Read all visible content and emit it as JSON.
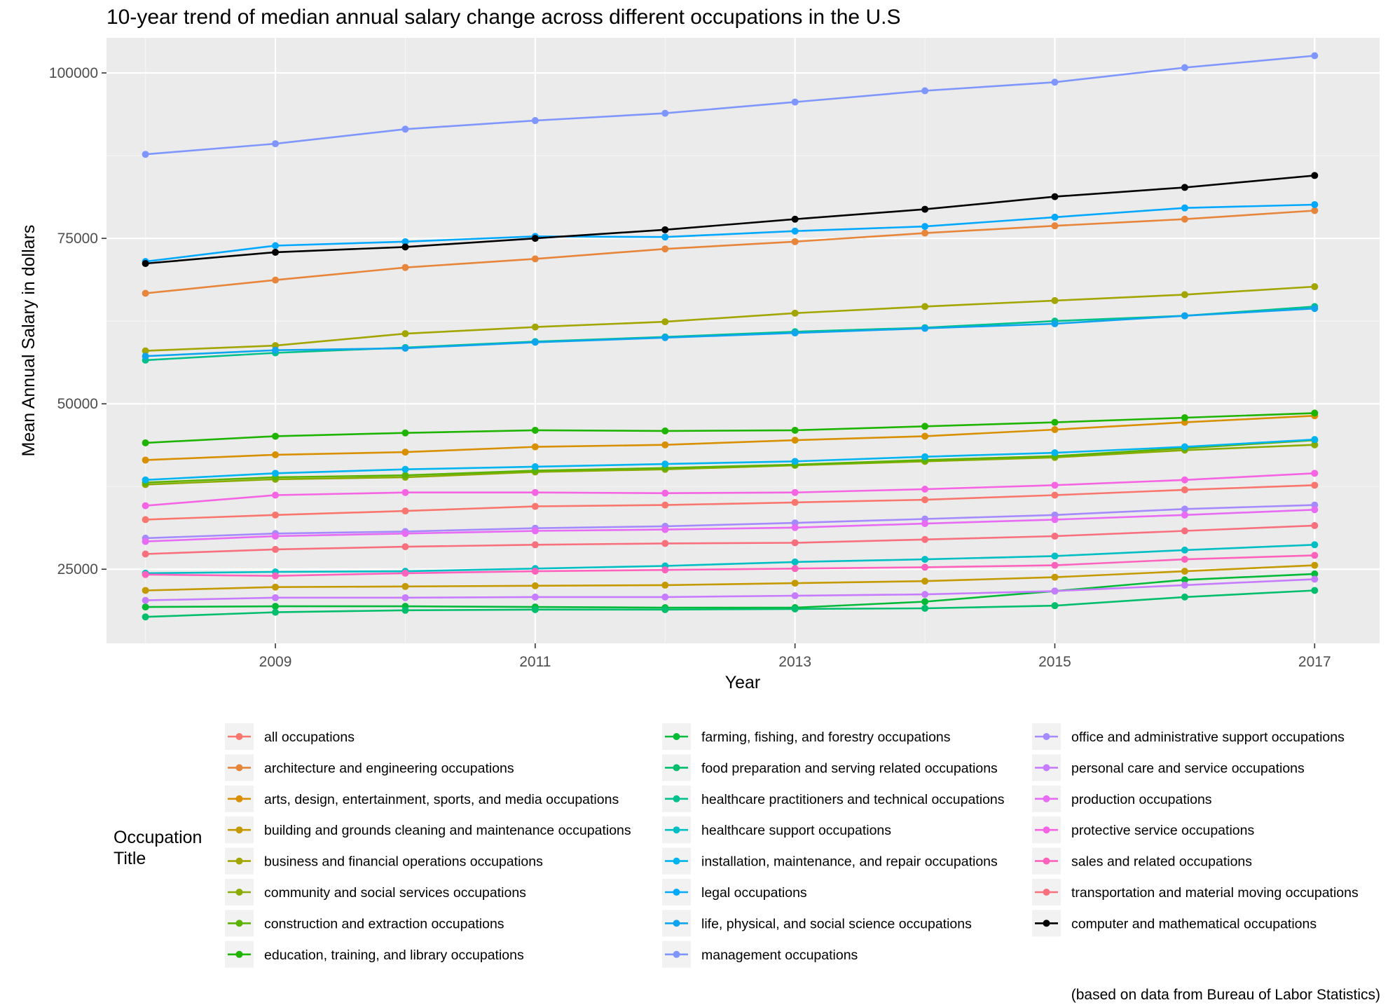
{
  "chart_data": {
    "type": "line",
    "title": "10-year trend of median annual salary change across different occupations in the U.S",
    "xlabel": "Year",
    "ylabel": "Mean Annual Salary in dollars",
    "caption": "(based on data from Bureau of Labor Statistics)",
    "x": [
      2008,
      2009,
      2010,
      2011,
      2012,
      2013,
      2014,
      2015,
      2016,
      2017
    ],
    "xticks": [
      2009,
      2011,
      2013,
      2015,
      2017
    ],
    "yticks": [
      25000,
      50000,
      75000,
      100000
    ],
    "xlim": [
      2007.7,
      2017.5
    ],
    "ylim": [
      13800,
      105300
    ],
    "grid": true,
    "legend_title": "Occupation\nTitle",
    "legend_position": "bottom",
    "series": [
      {
        "name": "all occupations",
        "color": "#F8766D",
        "values": [
          32500,
          33200,
          33800,
          34500,
          34700,
          35100,
          35500,
          36200,
          37000,
          37700
        ]
      },
      {
        "name": "architecture and engineering occupations",
        "color": "#E7853B",
        "values": [
          66700,
          68700,
          70600,
          71900,
          73400,
          74500,
          75800,
          76900,
          77900,
          79200
        ]
      },
      {
        "name": "arts, design, entertainment, sports, and media occupations",
        "color": "#D89000",
        "values": [
          41500,
          42300,
          42700,
          43500,
          43800,
          44500,
          45100,
          46100,
          47200,
          48200
        ]
      },
      {
        "name": "building and grounds cleaning and maintenance occupations",
        "color": "#C49A00",
        "values": [
          21800,
          22300,
          22400,
          22500,
          22600,
          22900,
          23200,
          23800,
          24700,
          25600
        ]
      },
      {
        "name": "business and financial operations occupations",
        "color": "#A3A500",
        "values": [
          58000,
          58800,
          60600,
          61600,
          62400,
          63700,
          64700,
          65600,
          66500,
          67700
        ]
      },
      {
        "name": "community and social services occupations",
        "color": "#8AAB00",
        "values": [
          37800,
          38600,
          38900,
          39700,
          40100,
          40700,
          41300,
          41900,
          43000,
          43800
        ]
      },
      {
        "name": "construction and extraction occupations",
        "color": "#5BB300",
        "values": [
          38100,
          38900,
          39200,
          39900,
          40300,
          40800,
          41500,
          42100,
          43300,
          44500
        ]
      },
      {
        "name": "education, training, and library occupations",
        "color": "#1EB400",
        "values": [
          44100,
          45100,
          45600,
          46000,
          45900,
          46000,
          46600,
          47200,
          47900,
          48600
        ]
      },
      {
        "name": "farming, fishing, and forestry occupations",
        "color": "#00BA38",
        "values": [
          19300,
          19400,
          19400,
          19300,
          19200,
          19200,
          20100,
          21700,
          23400,
          24300
        ]
      },
      {
        "name": "food preparation and serving related occupations",
        "color": "#00BE6C",
        "values": [
          17800,
          18500,
          18800,
          18900,
          18900,
          19000,
          19100,
          19500,
          20800,
          21800
        ]
      },
      {
        "name": "healthcare practitioners and technical occupations",
        "color": "#00C08B",
        "values": [
          56600,
          57700,
          58500,
          59400,
          60100,
          60900,
          61500,
          62500,
          63300,
          64700
        ]
      },
      {
        "name": "healthcare support occupations",
        "color": "#00BFC4",
        "values": [
          24400,
          24600,
          24700,
          25100,
          25500,
          26100,
          26500,
          27000,
          27900,
          28700
        ]
      },
      {
        "name": "installation, maintenance, and repair occupations",
        "color": "#00B4EF",
        "values": [
          38500,
          39500,
          40100,
          40500,
          40900,
          41300,
          42000,
          42600,
          43500,
          44600
        ]
      },
      {
        "name": "legal occupations",
        "color": "#00A9FF",
        "values": [
          71500,
          73900,
          74500,
          75300,
          75200,
          76100,
          76800,
          78200,
          79600,
          80100
        ]
      },
      {
        "name": "life, physical, and social science occupations",
        "color": "#0FA5EE",
        "values": [
          57200,
          58100,
          58400,
          59300,
          60000,
          60700,
          61400,
          62100,
          63300,
          64400
        ]
      },
      {
        "name": "management occupations",
        "color": "#7F96FF",
        "values": [
          87700,
          89300,
          91500,
          92800,
          93900,
          95600,
          97300,
          98600,
          100800,
          102600
        ]
      },
      {
        "name": "office and administrative support occupations",
        "color": "#A58AFF",
        "values": [
          29700,
          30400,
          30700,
          31200,
          31500,
          32000,
          32600,
          33200,
          34100,
          34700
        ]
      },
      {
        "name": "personal care and service occupations",
        "color": "#C77CFF",
        "values": [
          20300,
          20700,
          20700,
          20800,
          20800,
          21000,
          21200,
          21700,
          22600,
          23500
        ]
      },
      {
        "name": "production occupations",
        "color": "#E76BF3",
        "values": [
          29200,
          30000,
          30400,
          30800,
          31000,
          31300,
          31900,
          32500,
          33200,
          34000
        ]
      },
      {
        "name": "protective service occupations",
        "color": "#F564E3",
        "values": [
          34600,
          36200,
          36600,
          36600,
          36500,
          36600,
          37100,
          37700,
          38500,
          39500
        ]
      },
      {
        "name": "sales and related occupations",
        "color": "#FF62BC",
        "values": [
          24200,
          24000,
          24400,
          24700,
          24900,
          25100,
          25300,
          25600,
          26500,
          27100
        ]
      },
      {
        "name": "transportation and material moving occupations",
        "color": "#F8707E",
        "values": [
          27300,
          28000,
          28400,
          28700,
          28900,
          29000,
          29500,
          30000,
          30800,
          31600
        ]
      },
      {
        "name": "computer and mathematical occupations",
        "color": "#000000",
        "values": [
          71200,
          72900,
          73700,
          75000,
          76300,
          77900,
          79400,
          81300,
          82700,
          84500
        ]
      }
    ]
  }
}
